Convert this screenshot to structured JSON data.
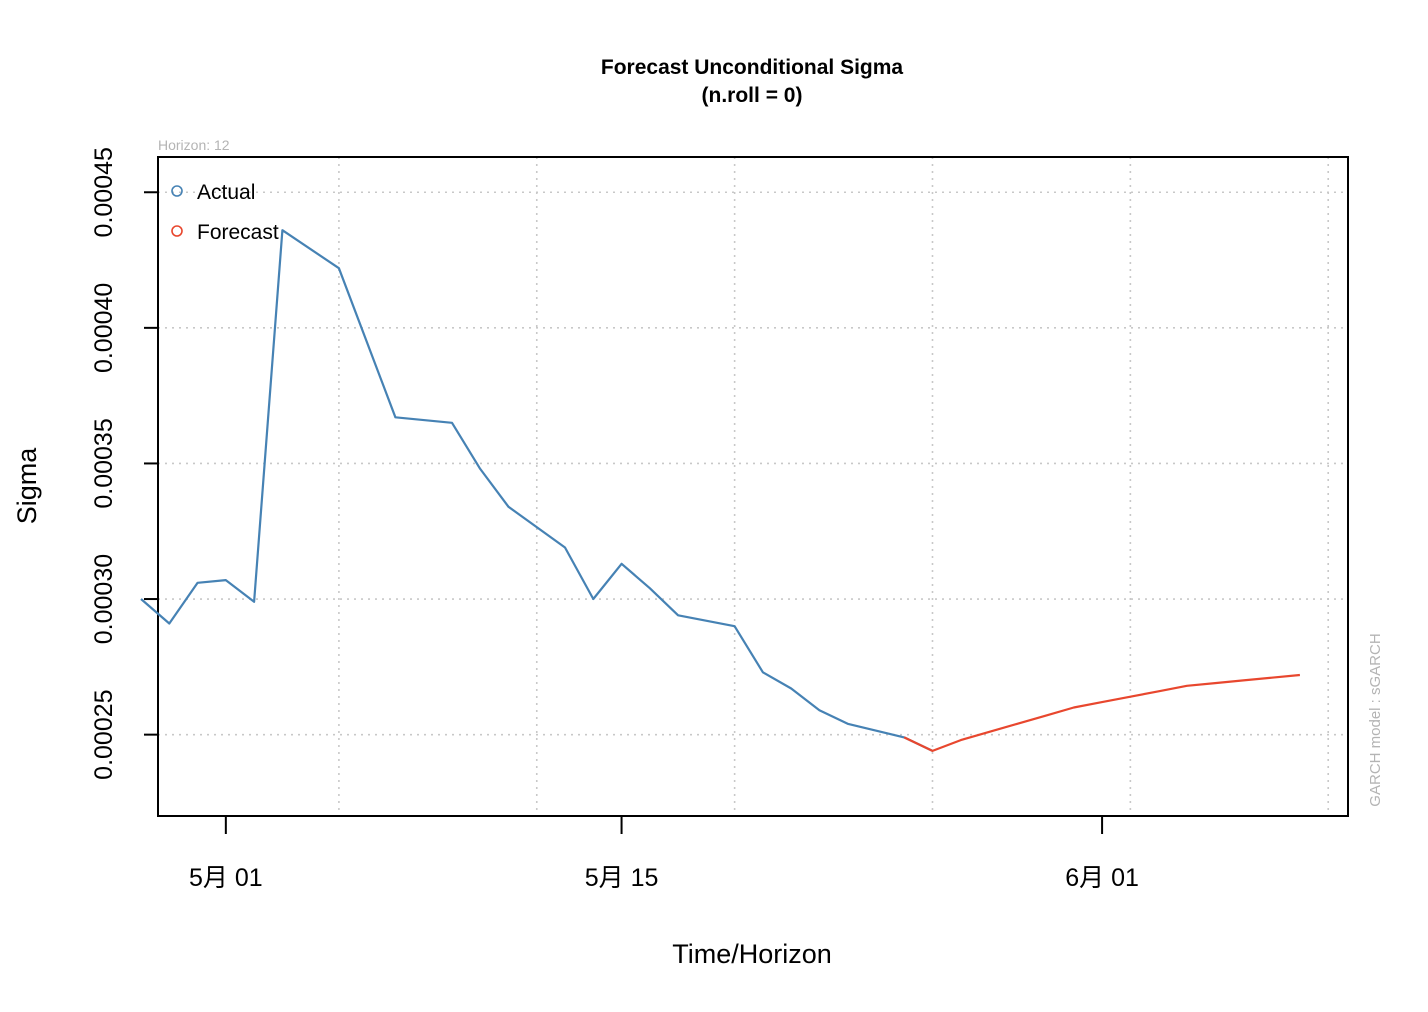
{
  "chart_data": {
    "type": "line",
    "title": "Forecast Unconditional Sigma",
    "subtitle": "(n.roll = 0)",
    "xlabel": "Time/Horizon",
    "ylabel": "Sigma",
    "horizon_note": "Horizon: 12",
    "model_note": "GARCH model :  sGARCH",
    "grid": true,
    "legend_position": "top-left",
    "ylim": [
      0.00022,
      0.000463
    ],
    "y_ticks": [
      0.00025,
      0.0003,
      0.00035,
      0.0004,
      0.00045
    ],
    "y_tick_labels": [
      "0.00025",
      "0.00030",
      "0.00035",
      "0.00040",
      "0.00045"
    ],
    "x_ticks": [
      "2024-05-01",
      "2024-05-15",
      "2024-06-01"
    ],
    "x_tick_labels": [
      "5月 01",
      "5月 15",
      "6月 01"
    ],
    "series": [
      {
        "name": "Actual",
        "color": "#4682b4",
        "x": [
          "2024-04-28",
          "2024-04-29",
          "2024-04-30",
          "2024-05-01",
          "2024-05-02",
          "2024-05-03",
          "2024-05-05",
          "2024-05-07",
          "2024-05-09",
          "2024-05-10",
          "2024-05-11",
          "2024-05-13",
          "2024-05-14",
          "2024-05-15",
          "2024-05-16",
          "2024-05-17",
          "2024-05-19",
          "2024-05-20",
          "2024-05-21",
          "2024-05-22",
          "2024-05-23",
          "2024-05-25",
          "2024-05-26"
        ],
        "values": [
          0.0003,
          0.000291,
          0.000306,
          0.000307,
          0.000299,
          0.000436,
          0.000422,
          0.000367,
          0.000365,
          0.000348,
          0.000334,
          0.000319,
          0.0003,
          0.000313,
          0.000304,
          0.000294,
          0.00029,
          0.000273,
          0.000267,
          0.000259,
          0.000254,
          0.000249,
          0.000244
        ]
      },
      {
        "name": "Forecast",
        "color": "#e8472e",
        "x": [
          "2024-05-25",
          "2024-05-26",
          "2024-05-27",
          "2024-05-28",
          "2024-05-29",
          "2024-05-30",
          "2024-05-31",
          "2024-06-01",
          "2024-06-02",
          "2024-06-03",
          "2024-06-04",
          "2024-06-05",
          "2024-06-06",
          "2024-06-07",
          "2024-06-08"
        ],
        "values": [
          0.000249,
          0.000244,
          0.000248,
          0.000251,
          0.000254,
          0.000257,
          0.00026,
          0.000262,
          0.000264,
          0.000266,
          0.000268,
          0.000269,
          0.00027,
          0.000271,
          0.000272
        ]
      }
    ]
  }
}
